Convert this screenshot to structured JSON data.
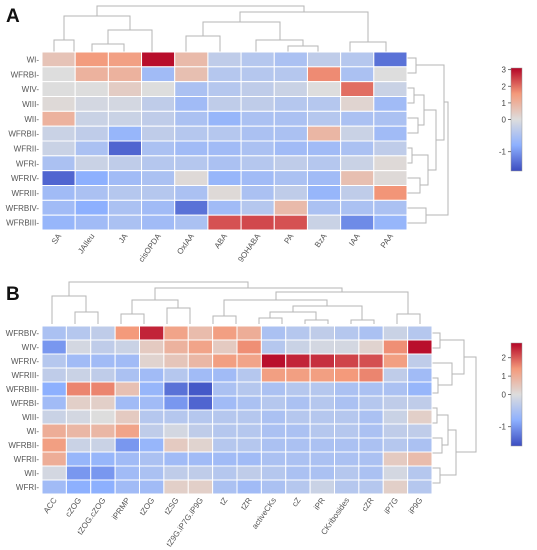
{
  "chart_data": [
    {
      "type": "heatmap",
      "panel_label": "A",
      "rows": [
        "WI",
        "WFRBI",
        "WIV",
        "WIII",
        "WII",
        "WFRBII",
        "WFRII",
        "WFRI",
        "WFRIV",
        "WFRIII",
        "WFRBIV",
        "WFRBIII"
      ],
      "columns": [
        "SA",
        "JAIleu",
        "JA",
        "cisOPDA",
        "OxIAA",
        "ABA",
        "9OHABA",
        "PA",
        "BzA",
        "IAA",
        "PAA"
      ],
      "values": [
        [
          0.6,
          1.5,
          1.4,
          3.0,
          0.8,
          -0.3,
          -0.4,
          -0.5,
          -0.3,
          -0.4,
          -1.3
        ],
        [
          0.0,
          1.0,
          1.0,
          -0.6,
          0.7,
          -0.4,
          -0.4,
          -0.4,
          1.7,
          -0.5,
          0.0
        ],
        [
          0.0,
          0.0,
          0.4,
          0.0,
          -0.5,
          -0.4,
          -0.3,
          -0.2,
          0.0,
          2.0,
          -0.2
        ],
        [
          0.1,
          -0.1,
          -0.1,
          -0.3,
          -0.6,
          -0.3,
          -0.3,
          -0.4,
          -0.4,
          0.2,
          -0.6
        ],
        [
          1.0,
          -0.2,
          -0.2,
          -0.3,
          -0.5,
          -0.7,
          -0.5,
          -0.5,
          -0.4,
          -0.5,
          -0.5
        ],
        [
          -0.2,
          -0.3,
          -0.7,
          -0.3,
          -0.4,
          -0.4,
          -0.5,
          -0.5,
          0.9,
          -0.2,
          -0.6
        ],
        [
          -0.2,
          -0.5,
          -1.4,
          -0.5,
          -0.6,
          -0.6,
          -0.5,
          -0.6,
          -0.6,
          -0.5,
          -0.3
        ],
        [
          -0.5,
          -0.2,
          -0.3,
          -0.4,
          -0.4,
          -0.5,
          -0.4,
          -0.3,
          -0.4,
          -0.2,
          0.1
        ],
        [
          -1.4,
          -0.8,
          -0.6,
          -0.5,
          0.1,
          -0.7,
          -0.6,
          -0.5,
          -0.6,
          0.7,
          0.1
        ],
        [
          -0.6,
          -0.5,
          -0.4,
          -0.4,
          -0.5,
          0.1,
          -0.5,
          -0.3,
          -0.7,
          -0.3,
          1.6
        ],
        [
          -0.6,
          -0.8,
          -0.5,
          -0.6,
          -1.3,
          -0.6,
          -0.4,
          0.8,
          -0.5,
          -0.5,
          -0.5
        ],
        [
          -0.7,
          -0.6,
          -0.5,
          -0.6,
          -0.5,
          2.3,
          2.4,
          2.3,
          -0.2,
          -1.1,
          -0.7
        ]
      ],
      "colorbar": {
        "min": -1.6,
        "max": 3.1,
        "ticks": [
          3,
          2,
          1,
          0,
          -1
        ]
      }
    },
    {
      "type": "heatmap",
      "panel_label": "B",
      "rows": [
        "WFRBIV",
        "WIV",
        "WFRIV",
        "WFRIII",
        "WFRBIII",
        "WFRBI",
        "WIII",
        "WI",
        "WFRBII",
        "WFRII",
        "WII",
        "WFRI"
      ],
      "columns": [
        "ACC",
        "cZOG",
        "tZOG.cZOG",
        "iPRMP",
        "tZOG",
        "tZSG",
        "tZ9G.iP7G.iP9G",
        "tZ",
        "tZR",
        "activeCKs",
        "cZ",
        "iPR",
        "CKribosides",
        "cZR",
        "iP7G",
        "iP9G"
      ],
      "values": [
        [
          -0.5,
          -0.4,
          -0.3,
          1.4,
          2.5,
          1.2,
          0.7,
          1.3,
          1.0,
          -0.5,
          -0.4,
          -0.3,
          -0.4,
          -0.5,
          -0.2,
          -0.4
        ],
        [
          -1.0,
          -0.1,
          -0.3,
          -0.2,
          0.4,
          0.9,
          1.2,
          0.4,
          1.5,
          -0.4,
          -0.2,
          -0.1,
          -0.1,
          0.2,
          1.5,
          2.7
        ],
        [
          -0.4,
          -0.6,
          -0.6,
          -0.6,
          0.2,
          0.5,
          0.8,
          1.3,
          1.2,
          2.7,
          2.5,
          2.4,
          2.2,
          2.1,
          1.3,
          -0.3
        ],
        [
          -0.3,
          -0.2,
          -0.3,
          -0.5,
          -0.6,
          -0.4,
          -0.6,
          -0.6,
          -0.4,
          1.3,
          1.3,
          1.3,
          1.4,
          1.6,
          -0.3,
          -0.6
        ],
        [
          -0.8,
          1.6,
          1.6,
          0.6,
          -0.7,
          -1.3,
          -1.5,
          -0.5,
          -0.4,
          -0.5,
          -0.4,
          -0.4,
          -0.5,
          -0.5,
          -0.5,
          -0.7
        ],
        [
          -0.6,
          0.3,
          0.3,
          -0.6,
          -0.6,
          -1.0,
          -1.4,
          -0.6,
          -0.5,
          -0.4,
          -0.5,
          -0.4,
          -0.5,
          -0.4,
          -0.3,
          -0.3
        ],
        [
          -0.2,
          -0.1,
          0.0,
          0.4,
          -0.4,
          -0.4,
          -0.4,
          -0.4,
          -0.4,
          -0.5,
          -0.4,
          -0.4,
          -0.4,
          -0.5,
          -0.2,
          0.3
        ],
        [
          1.0,
          0.8,
          0.8,
          1.2,
          -0.3,
          -0.1,
          -0.3,
          -0.4,
          -0.4,
          -0.5,
          -0.5,
          -0.4,
          -0.4,
          -0.5,
          -0.3,
          -0.3
        ],
        [
          1.3,
          -0.2,
          -0.2,
          -1.0,
          -0.7,
          0.4,
          0.2,
          -0.4,
          -0.4,
          -0.5,
          -0.5,
          -0.5,
          -0.5,
          -0.5,
          -0.4,
          -0.5
        ],
        [
          1.0,
          -0.7,
          -0.7,
          -0.6,
          -0.5,
          -0.6,
          -0.6,
          -0.6,
          -0.6,
          -0.5,
          -0.5,
          -0.5,
          -0.5,
          -0.5,
          0.4,
          0.7
        ],
        [
          -0.1,
          -1.0,
          -1.0,
          -0.6,
          -0.5,
          -0.3,
          -0.3,
          -0.4,
          -0.3,
          -0.4,
          -0.5,
          -0.5,
          -0.4,
          -0.5,
          -0.1,
          -0.4
        ],
        [
          -0.6,
          -0.8,
          -0.8,
          -0.6,
          -0.6,
          0.3,
          0.3,
          -0.5,
          -0.6,
          -0.5,
          -0.4,
          -0.2,
          -0.4,
          -0.4,
          0.3,
          -0.4
        ]
      ],
      "colorbar": {
        "min": -1.6,
        "max": 2.8,
        "ticks": [
          2,
          1,
          0,
          -1
        ]
      }
    }
  ]
}
